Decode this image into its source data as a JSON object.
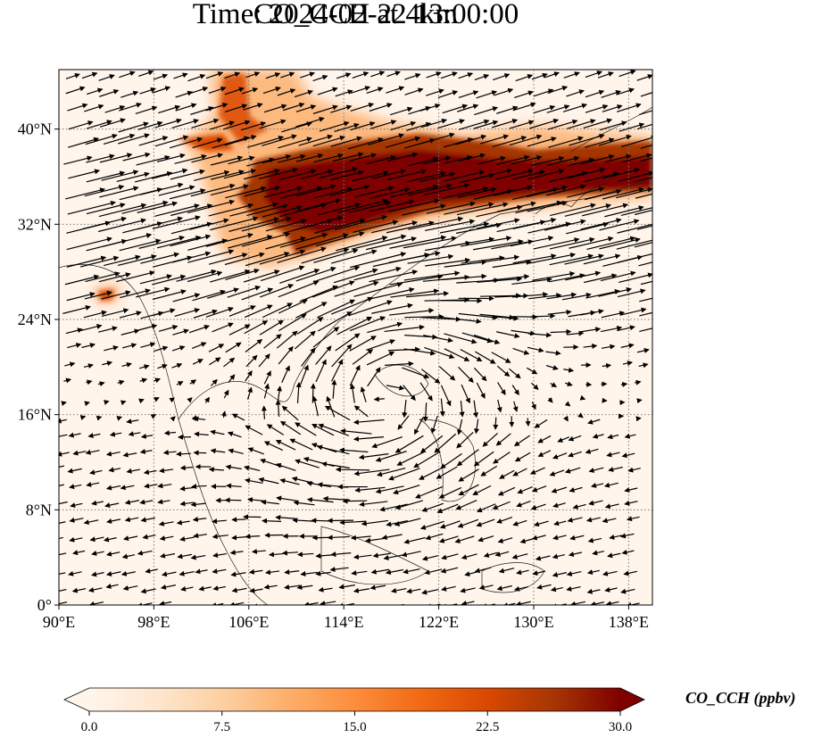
{
  "title": {
    "line1": "CO_CCH at 4km",
    "line2": "Time: 2024-02-22 13:00:00"
  },
  "map": {
    "lon_range": [
      90,
      140
    ],
    "lat_range": [
      0,
      45
    ],
    "lon_ticks": [
      {
        "value": 90,
        "label": "90°E"
      },
      {
        "value": 98,
        "label": "98°E"
      },
      {
        "value": 106,
        "label": "106°E"
      },
      {
        "value": 114,
        "label": "114°E"
      },
      {
        "value": 122,
        "label": "122°E"
      },
      {
        "value": 130,
        "label": "130°E"
      },
      {
        "value": 138,
        "label": "138°E"
      }
    ],
    "lat_ticks": [
      {
        "value": 0,
        "label": "0°"
      },
      {
        "value": 8,
        "label": "8°N"
      },
      {
        "value": 16,
        "label": "16°N"
      },
      {
        "value": 24,
        "label": "24°N"
      },
      {
        "value": 32,
        "label": "32°N"
      },
      {
        "value": 40,
        "label": "40°N"
      }
    ],
    "gridlines": "dotted",
    "background_color": "#fff5eb"
  },
  "colorbar": {
    "label": "CO_CCH (ppbv)",
    "min": 0.0,
    "max": 30.0,
    "ticks": [
      "0.0",
      "7.5",
      "15.0",
      "22.5",
      "30.0"
    ],
    "colormap": "OrRd",
    "extend": "both",
    "colors": [
      "#fff5eb",
      "#fee6ce",
      "#fdd0a2",
      "#fdae6b",
      "#fd8d3c",
      "#f16913",
      "#d94801",
      "#a63603",
      "#7f0000"
    ]
  }
}
